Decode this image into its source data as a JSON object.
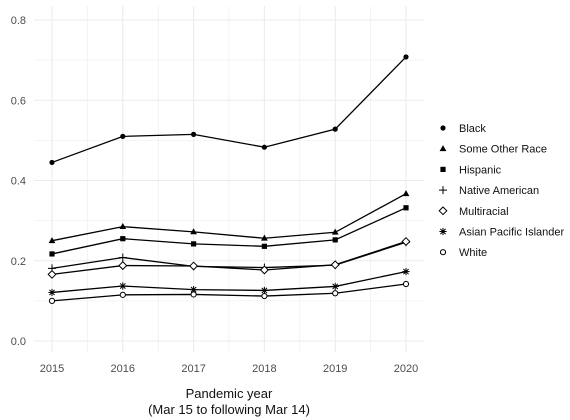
{
  "chart_data": {
    "type": "line",
    "title": "",
    "xlabel_line1": "Pandemic year",
    "xlabel_line2": "(Mar 15 to following Mar 14)",
    "ylabel": "",
    "x": [
      2015,
      2016,
      2017,
      2018,
      2019,
      2020
    ],
    "xticks": [
      "2015",
      "2016",
      "2017",
      "2018",
      "2019",
      "2020"
    ],
    "yticks": [
      "0.0",
      "0.2",
      "0.4",
      "0.6",
      "0.8"
    ],
    "ylim": [
      0,
      0.8
    ],
    "grid": true,
    "legend_position": "right",
    "series": [
      {
        "name": "Black",
        "marker": "filled-circle",
        "values": [
          0.445,
          0.51,
          0.515,
          0.483,
          0.528,
          0.708
        ]
      },
      {
        "name": "Some Other Race",
        "marker": "filled-triangle",
        "values": [
          0.25,
          0.285,
          0.272,
          0.256,
          0.271,
          0.367
        ]
      },
      {
        "name": "Hispanic",
        "marker": "filled-square",
        "values": [
          0.217,
          0.255,
          0.242,
          0.236,
          0.252,
          0.332
        ]
      },
      {
        "name": "Native American",
        "marker": "plus",
        "values": [
          0.181,
          0.208,
          0.186,
          0.183,
          0.189,
          0.246
        ]
      },
      {
        "name": "Multiracial",
        "marker": "open-diamond",
        "values": [
          0.166,
          0.188,
          0.187,
          0.177,
          0.19,
          0.248
        ]
      },
      {
        "name": "Asian Pacific Islander",
        "marker": "asterisk",
        "values": [
          0.121,
          0.137,
          0.128,
          0.126,
          0.136,
          0.173
        ]
      },
      {
        "name": "White",
        "marker": "open-circle",
        "values": [
          0.1,
          0.115,
          0.116,
          0.112,
          0.119,
          0.142
        ]
      }
    ],
    "colors": {
      "line": "#000000",
      "grid": "#ebebeb",
      "background": "#ffffff"
    }
  }
}
